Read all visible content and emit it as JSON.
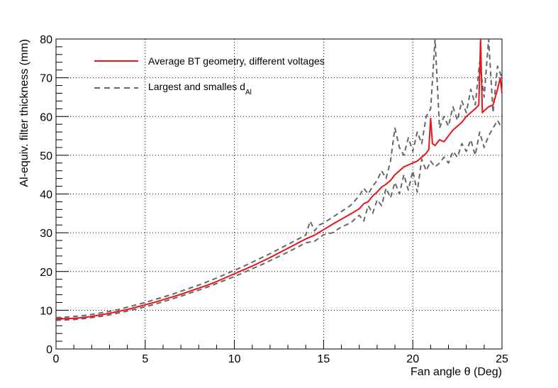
{
  "chart_data": {
    "type": "line",
    "title": "",
    "xlabel": "Fan angle θ (Deg)",
    "ylabel": "Al-equiv. filter thickness (mm)",
    "xlim": [
      0,
      25
    ],
    "ylim": [
      0,
      80
    ],
    "x_ticks": [
      "0",
      "5",
      "10",
      "15",
      "20",
      "25"
    ],
    "y_ticks": [
      "0",
      "10",
      "20",
      "30",
      "40",
      "50",
      "60",
      "70",
      "80"
    ],
    "grid": true,
    "legend_position": "top-left",
    "colors": {
      "average": "#e8141a",
      "extremes": "#666666",
      "grid": "#000000"
    },
    "legend": {
      "average_label": "Average BT geometry, different voltages",
      "extremes_label_main": "Largest and smalles d",
      "extremes_label_sub": "Al"
    },
    "series": [
      {
        "name": "Average BT geometry, different voltages",
        "style": "solid",
        "x": [
          0,
          0.5,
          1,
          1.5,
          2,
          2.5,
          3,
          3.5,
          4,
          4.5,
          5,
          5.5,
          6,
          6.5,
          7,
          7.5,
          8,
          8.5,
          9,
          9.5,
          10,
          10.5,
          11,
          11.5,
          12,
          12.5,
          13,
          13.5,
          14,
          14.5,
          15,
          15.5,
          16,
          16.5,
          17,
          17.25,
          17.5,
          17.75,
          18,
          18.25,
          18.5,
          18.75,
          19,
          19.25,
          19.5,
          19.75,
          20,
          20.25,
          20.5,
          20.75,
          20.9,
          21,
          21.1,
          21.25,
          21.5,
          21.75,
          22,
          22.25,
          22.5,
          22.75,
          23,
          23.25,
          23.5,
          23.7,
          23.8,
          23.9,
          24,
          24.25,
          24.5,
          24.75,
          24.9,
          25
        ],
        "y": [
          7.7,
          7.8,
          7.9,
          8.1,
          8.4,
          8.8,
          9.2,
          9.7,
          10.2,
          10.8,
          11.4,
          12.0,
          12.7,
          13.4,
          14.1,
          14.9,
          15.7,
          16.5,
          17.4,
          18.4,
          19.4,
          20.4,
          21.4,
          22.5,
          23.6,
          24.8,
          26.0,
          27.2,
          28.4,
          29.4,
          30.8,
          32.2,
          33.5,
          34.8,
          36.2,
          37.5,
          38.0,
          39.5,
          40.5,
          41.8,
          42.5,
          43.5,
          45.0,
          46.0,
          47.0,
          47.5,
          48.0,
          48.5,
          49.5,
          50.5,
          51.5,
          59.5,
          53.0,
          52.5,
          54.0,
          53.5,
          55.0,
          56.5,
          57.5,
          58.5,
          60.0,
          61.0,
          62.0,
          63.0,
          80,
          61.0,
          61.5,
          62.5,
          63.0,
          67.0,
          70.0,
          66.0
        ]
      },
      {
        "name": "Largest and smalles dAl (upper)",
        "style": "dashed",
        "x": [
          0,
          0.5,
          1,
          1.5,
          2,
          2.5,
          3,
          3.5,
          4,
          4.5,
          5,
          5.5,
          6,
          6.5,
          7,
          7.5,
          8,
          8.5,
          9,
          9.5,
          10,
          10.5,
          11,
          11.5,
          12,
          12.5,
          13,
          13.5,
          14,
          14.25,
          14.5,
          14.75,
          15,
          15.5,
          16,
          16.5,
          17,
          17.25,
          17.5,
          17.75,
          18,
          18.25,
          18.5,
          18.75,
          19,
          19.25,
          19.5,
          19.75,
          20,
          20.25,
          20.5,
          20.75,
          21,
          21.25,
          21.5,
          21.75,
          22,
          22.25,
          22.5,
          22.75,
          23,
          23.25,
          23.5,
          23.75,
          24,
          24.25,
          24.5,
          24.75,
          25
        ],
        "y": [
          8.1,
          8.2,
          8.4,
          8.6,
          8.9,
          9.3,
          9.7,
          10.2,
          10.8,
          11.4,
          12.0,
          12.7,
          13.4,
          14.1,
          14.9,
          15.7,
          16.5,
          17.4,
          18.3,
          19.3,
          20.3,
          21.3,
          22.4,
          23.5,
          24.6,
          25.8,
          27.0,
          28.2,
          29.4,
          33.0,
          30.5,
          32.0,
          32.5,
          34.0,
          35.5,
          37.0,
          39.5,
          41.5,
          40.0,
          42.0,
          43.5,
          46.0,
          44.0,
          48.5,
          57.0,
          52.0,
          50.0,
          54.5,
          51.0,
          56.0,
          53.0,
          60.0,
          62.0,
          82.0,
          57.0,
          60.0,
          57.5,
          62.5,
          59.0,
          64.0,
          61.0,
          67.0,
          63.0,
          74.0,
          65.0,
          80.0,
          61.0,
          73.0,
          70.0
        ]
      },
      {
        "name": "Largest and smalles dAl (lower)",
        "style": "dashed",
        "x": [
          0,
          0.5,
          1,
          1.5,
          2,
          2.5,
          3,
          3.5,
          4,
          4.5,
          5,
          5.5,
          6,
          6.5,
          7,
          7.5,
          8,
          8.5,
          9,
          9.5,
          10,
          10.5,
          11,
          11.5,
          12,
          12.5,
          13,
          13.5,
          14,
          14.5,
          15,
          15.5,
          16,
          16.5,
          17,
          17.25,
          17.5,
          17.75,
          18,
          18.25,
          18.5,
          18.75,
          19,
          19.25,
          19.5,
          19.75,
          20,
          20.25,
          20.5,
          20.75,
          21,
          21.25,
          21.5,
          21.75,
          22,
          22.25,
          22.5,
          22.75,
          23,
          23.25,
          23.5,
          23.75,
          24,
          24.25,
          24.5,
          24.75,
          25
        ],
        "y": [
          7.4,
          7.5,
          7.6,
          7.8,
          8.1,
          8.4,
          8.8,
          9.3,
          9.8,
          10.3,
          10.9,
          11.5,
          12.2,
          12.9,
          13.6,
          14.4,
          15.2,
          16.0,
          16.9,
          17.8,
          18.7,
          19.7,
          20.7,
          21.7,
          22.8,
          23.9,
          25.0,
          26.2,
          27.4,
          27.8,
          29.5,
          30.0,
          31.5,
          32.5,
          34.5,
          33.0,
          37.0,
          35.0,
          38.5,
          37.0,
          41.5,
          39.0,
          43.0,
          40.0,
          45.0,
          41.0,
          46.0,
          40.5,
          49.0,
          46.0,
          48.5,
          47.0,
          48.0,
          49.5,
          48.0,
          51.0,
          49.5,
          53.0,
          51.0,
          54.0,
          50.0,
          56.0,
          52.0,
          55.0,
          57.0,
          59.0,
          57.0
        ]
      }
    ]
  }
}
